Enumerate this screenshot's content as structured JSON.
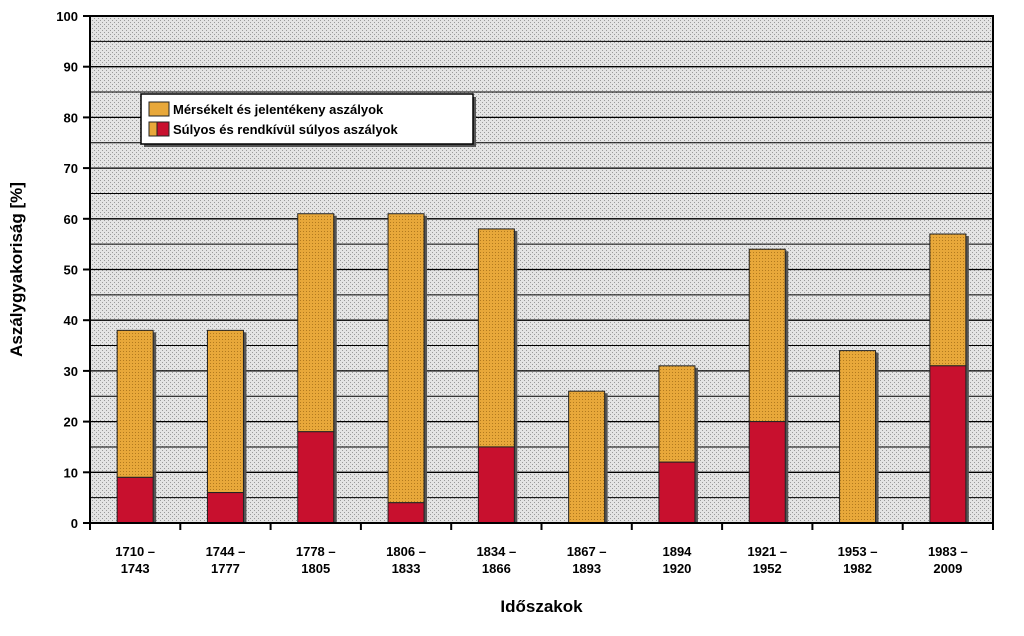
{
  "chart_data": {
    "type": "bar",
    "stacked": true,
    "title": "",
    "xlabel": "Időszakok",
    "ylabel": "Aszálygyakoriság [%]",
    "ylim": [
      0,
      100
    ],
    "yticks": [
      0,
      10,
      20,
      30,
      40,
      50,
      60,
      70,
      80,
      90,
      100
    ],
    "grid": true,
    "legend_position": "top-left",
    "categories": [
      [
        "1710 –",
        "1743"
      ],
      [
        "1744 –",
        "1777"
      ],
      [
        "1778 –",
        "1805"
      ],
      [
        "1806 –",
        "1833"
      ],
      [
        "1834 –",
        "1866"
      ],
      [
        "1867 –",
        "1893"
      ],
      [
        "1894",
        "1920"
      ],
      [
        "1921 –",
        "1952"
      ],
      [
        "1953 –",
        "1982"
      ],
      [
        "1983 –",
        "2009"
      ]
    ],
    "series": [
      {
        "name": "Súlyos és rendkívül súlyos aszályok",
        "color": "#c8102e",
        "values": [
          9,
          6,
          18,
          4,
          15,
          0,
          12,
          20,
          0,
          31
        ]
      },
      {
        "name": "Mérsékelt és jelentékeny aszályok",
        "color": "#e8a83a",
        "values": [
          29,
          32,
          43,
          57,
          43,
          26,
          19,
          34,
          34,
          26
        ]
      }
    ],
    "totals": [
      38,
      38,
      61,
      61,
      58,
      26,
      31,
      54,
      34,
      57
    ]
  }
}
